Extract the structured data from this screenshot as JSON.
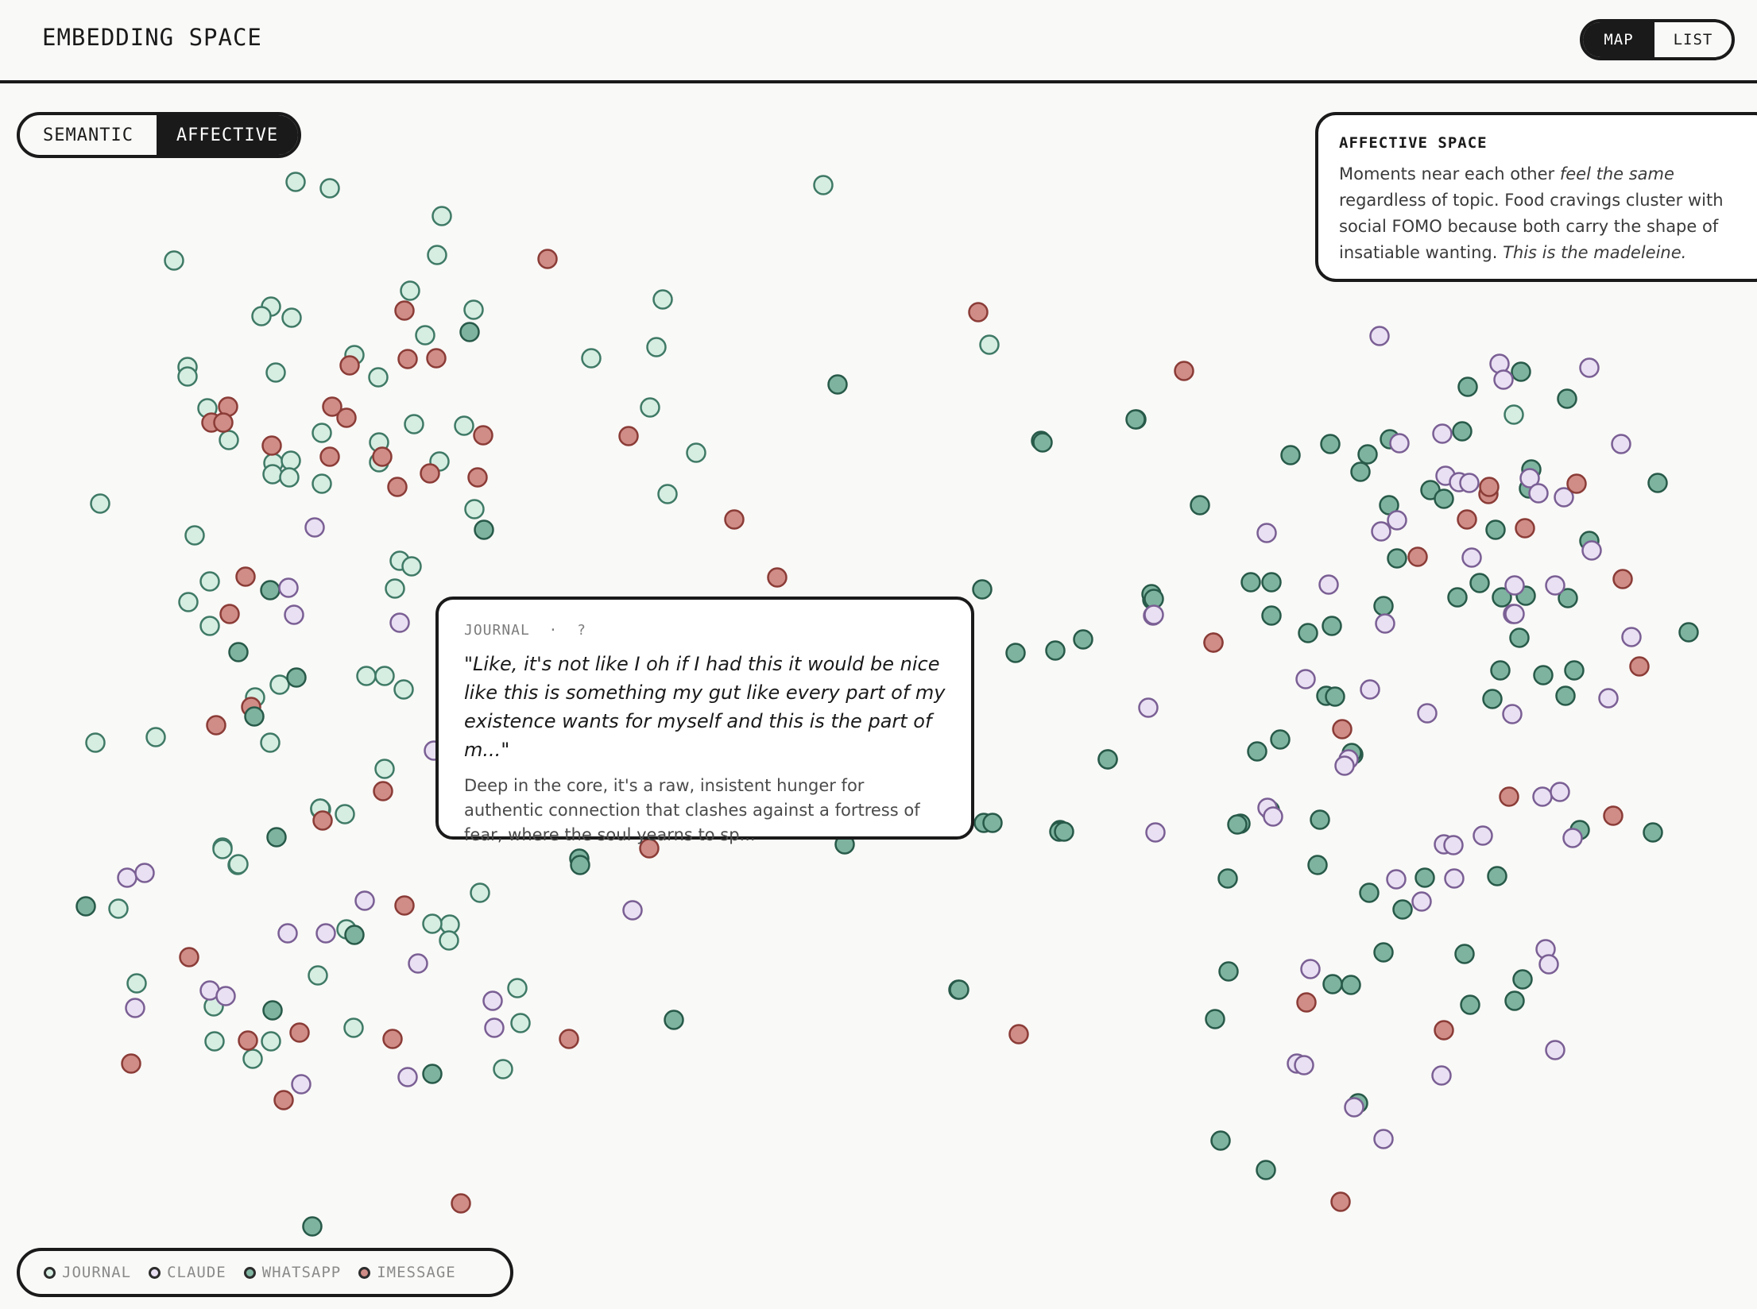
{
  "header": {
    "title": "EMBEDDING SPACE",
    "view_toggle": {
      "map_label": "MAP",
      "list_label": "LIST",
      "active": "MAP"
    }
  },
  "space_toggle": {
    "semantic_label": "SEMANTIC",
    "affective_label": "AFFECTIVE",
    "active": "AFFECTIVE"
  },
  "info_card": {
    "title": "AFFECTIVE SPACE",
    "body_part1": "Moments near each other ",
    "body_em1": "feel the same",
    "body_part2": " regardless of topic. Food cravings cluster with social FOMO because both carry the shape of insatiable wanting. ",
    "body_em2": "This is the madeleine."
  },
  "tooltip": {
    "source": "JOURNAL",
    "separator": "·",
    "date": "?",
    "quote": "\"Like, it's not like I oh if I had this it would be nice like this is something my gut like every part of my existence wants for myself and this is the part of m...\"",
    "summary": "Deep in the core, it's a raw, insistent hunger for authentic connection that clashes against a fortress of fear, where the soul yearns to sp..."
  },
  "legend": [
    {
      "key": "journal",
      "label": "JOURNAL",
      "color": "#d6ede2"
    },
    {
      "key": "claude",
      "label": "CLAUDE",
      "color": "#e9e0f3"
    },
    {
      "key": "whatsapp",
      "label": "WHATSAPP",
      "color": "#7db39f"
    },
    {
      "key": "imessage",
      "label": "IMESSAGE",
      "color": "#d08c86"
    }
  ],
  "colors": {
    "journal": "#d6ede2",
    "claude": "#e9e0f3",
    "whatsapp": "#7db39f",
    "imessage": "#d08c86",
    "stroke_light": "#3f7a66",
    "stroke_claude": "#7a5f94",
    "stroke_whatsapp": "#285a49",
    "stroke_imessage": "#8b3c37",
    "ink": "#1a1a1a",
    "background": "#f9f9f7"
  }
}
